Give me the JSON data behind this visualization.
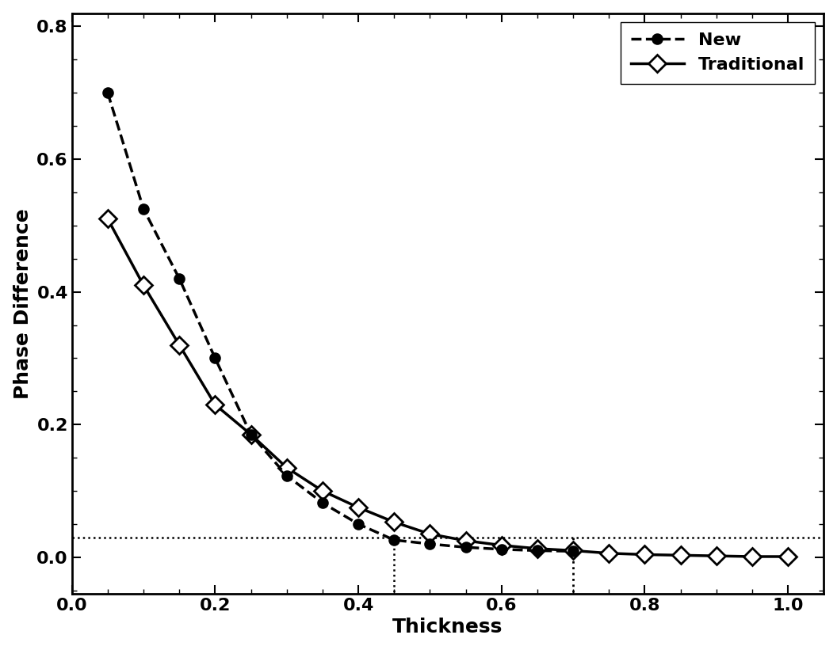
{
  "new_x": [
    0.05,
    0.1,
    0.15,
    0.2,
    0.25,
    0.3,
    0.35,
    0.4,
    0.45,
    0.5,
    0.55,
    0.6,
    0.65,
    0.7
  ],
  "new_y": [
    0.7,
    0.525,
    0.42,
    0.3,
    0.185,
    0.123,
    0.082,
    0.05,
    0.026,
    0.02,
    0.015,
    0.012,
    0.01,
    0.009
  ],
  "trad_x": [
    0.05,
    0.1,
    0.15,
    0.2,
    0.25,
    0.3,
    0.35,
    0.4,
    0.45,
    0.5,
    0.55,
    0.6,
    0.65,
    0.7,
    0.75,
    0.8,
    0.85,
    0.9,
    0.95,
    1.0
  ],
  "trad_y": [
    0.51,
    0.41,
    0.32,
    0.23,
    0.185,
    0.135,
    0.1,
    0.075,
    0.053,
    0.035,
    0.025,
    0.018,
    0.013,
    0.01,
    0.006,
    0.004,
    0.003,
    0.002,
    0.001,
    0.001
  ],
  "hline_y": 0.03,
  "vline1_x": 0.45,
  "vline2_x": 0.7,
  "xlim": [
    0.0,
    1.05
  ],
  "ylim": [
    -0.055,
    0.82
  ],
  "xlabel": "Thickness",
  "ylabel": "Phase Difference",
  "xticks": [
    0.0,
    0.2,
    0.4,
    0.6,
    0.8,
    1.0
  ],
  "yticks": [
    0.0,
    0.2,
    0.4,
    0.6,
    0.8
  ],
  "legend_new": "New",
  "legend_trad": "Traditional",
  "line_color": "#000000",
  "bg_color": "#ffffff",
  "label_fontsize": 18,
  "tick_fontsize": 16,
  "legend_fontsize": 16
}
